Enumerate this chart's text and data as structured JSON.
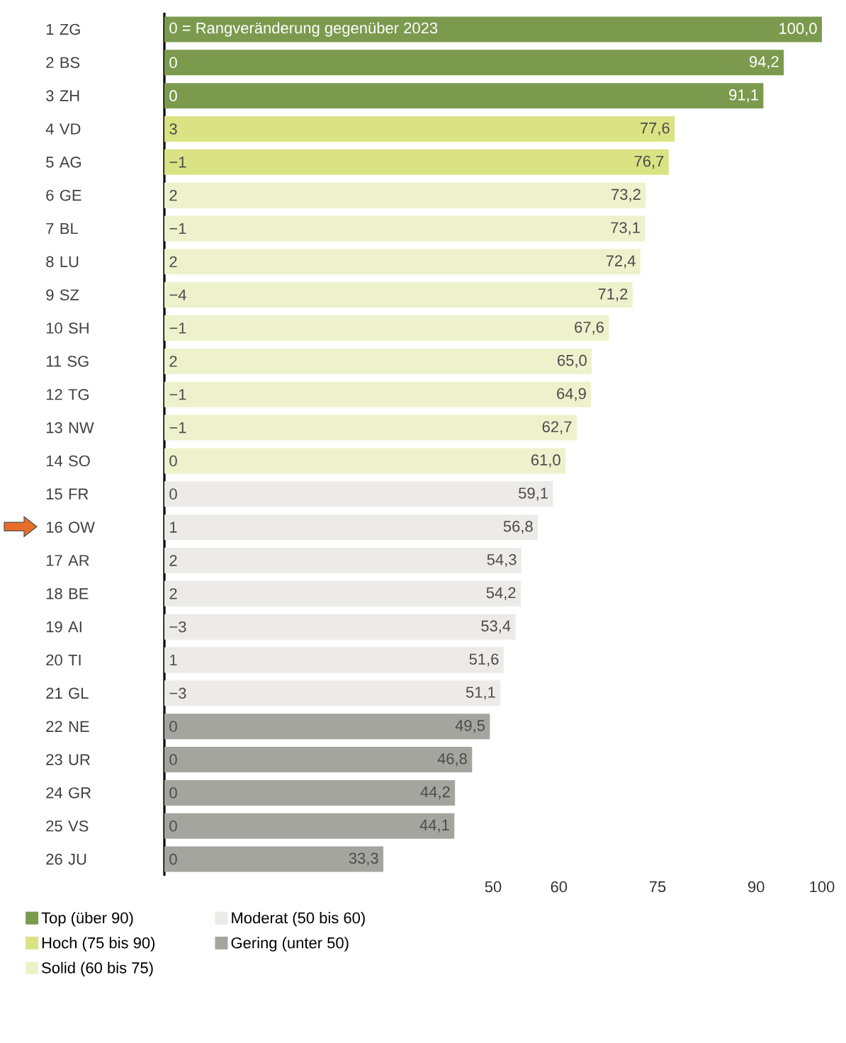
{
  "chart_data": {
    "type": "bar",
    "orientation": "horizontal",
    "categories": [
      "1 ZG",
      "2 BS",
      "3 ZH",
      "4 VD",
      "5 AG",
      "6 GE",
      "7 BL",
      "8 LU",
      "9 SZ",
      "10 SH",
      "11 SG",
      "12 TG",
      "13 NW",
      "14 SO",
      "15 FR",
      "16 OW",
      "17 AR",
      "18 BE",
      "19 AI",
      "20 TI",
      "21 GL",
      "22 NE",
      "23 UR",
      "24 GR",
      "25 VS",
      "26 JU"
    ],
    "series": [
      {
        "name": "Top (über 90)",
        "color": "#7b9a4e",
        "values": [
          100.0,
          94.2,
          91.1,
          null,
          null,
          null,
          null,
          null,
          null,
          null,
          null,
          null,
          null,
          null,
          null,
          null,
          null,
          null,
          null,
          null,
          null,
          null,
          null,
          null,
          null,
          null
        ],
        "value_labels": [
          "100,0",
          "94,2",
          "91,1",
          null,
          null,
          null,
          null,
          null,
          null,
          null,
          null,
          null,
          null,
          null,
          null,
          null,
          null,
          null,
          null,
          null,
          null,
          null,
          null,
          null,
          null,
          null
        ]
      },
      {
        "name": "Hoch (75 bis 90)",
        "color": "#d9e383",
        "values": [
          null,
          null,
          null,
          77.6,
          76.7,
          null,
          null,
          null,
          null,
          null,
          null,
          null,
          null,
          null,
          null,
          null,
          null,
          null,
          null,
          null,
          null,
          null,
          null,
          null,
          null,
          null
        ],
        "value_labels": [
          null,
          null,
          null,
          "77,6",
          "76,7",
          null,
          null,
          null,
          null,
          null,
          null,
          null,
          null,
          null,
          null,
          null,
          null,
          null,
          null,
          null,
          null,
          null,
          null,
          null,
          null,
          null
        ]
      },
      {
        "name": "Solid (60 bis 75)",
        "color": "#eef2cc",
        "values": [
          null,
          null,
          null,
          null,
          null,
          73.2,
          73.1,
          72.4,
          71.2,
          67.6,
          65.0,
          64.9,
          62.7,
          61.0,
          null,
          null,
          null,
          null,
          null,
          null,
          null,
          null,
          null,
          null,
          null,
          null
        ],
        "value_labels": [
          null,
          null,
          null,
          null,
          null,
          "73,2",
          "73,1",
          "72,4",
          "71,2",
          "67,6",
          "65,0",
          "64,9",
          "62,7",
          "61,0",
          null,
          null,
          null,
          null,
          null,
          null,
          null,
          null,
          null,
          null,
          null,
          null
        ]
      },
      {
        "name": "Moderat (50 bis 60)",
        "color": "#ecebe8",
        "values": [
          null,
          null,
          null,
          null,
          null,
          null,
          null,
          null,
          null,
          null,
          null,
          null,
          null,
          null,
          59.1,
          56.8,
          54.3,
          54.2,
          53.4,
          51.6,
          51.1,
          null,
          null,
          null,
          null,
          null
        ],
        "value_labels": [
          null,
          null,
          null,
          null,
          null,
          null,
          null,
          null,
          null,
          null,
          null,
          null,
          null,
          null,
          "59,1",
          "56,8",
          "54,3",
          "54,2",
          "53,4",
          "51,6",
          "51,1",
          null,
          null,
          null,
          null,
          null
        ]
      },
      {
        "name": "Gering (unter 50)",
        "color": "#a5a5a0",
        "values": [
          null,
          null,
          null,
          null,
          null,
          null,
          null,
          null,
          null,
          null,
          null,
          null,
          null,
          null,
          null,
          null,
          null,
          null,
          null,
          null,
          null,
          49.5,
          46.8,
          44.2,
          44.1,
          33.3
        ],
        "value_labels": [
          null,
          null,
          null,
          null,
          null,
          null,
          null,
          null,
          null,
          null,
          null,
          null,
          null,
          null,
          null,
          null,
          null,
          null,
          null,
          null,
          null,
          "49,5",
          "46,8",
          "44,2",
          "44,1",
          "33,3"
        ]
      }
    ],
    "xlim": [
      0,
      100
    ],
    "xticks": [
      50,
      60,
      75,
      90,
      100
    ],
    "legend": "bottom",
    "annotations": [
      "0 = Rangveränderung gegenüber 2023",
      "0",
      "0",
      "3",
      "−1",
      "2",
      "−1",
      "2",
      "−4",
      "−1",
      "2",
      "−1",
      "−1",
      "0",
      "0",
      "1",
      "2",
      "2",
      "−3",
      "1",
      "−3",
      "0",
      "0",
      "0",
      "0",
      "0"
    ]
  }
}
